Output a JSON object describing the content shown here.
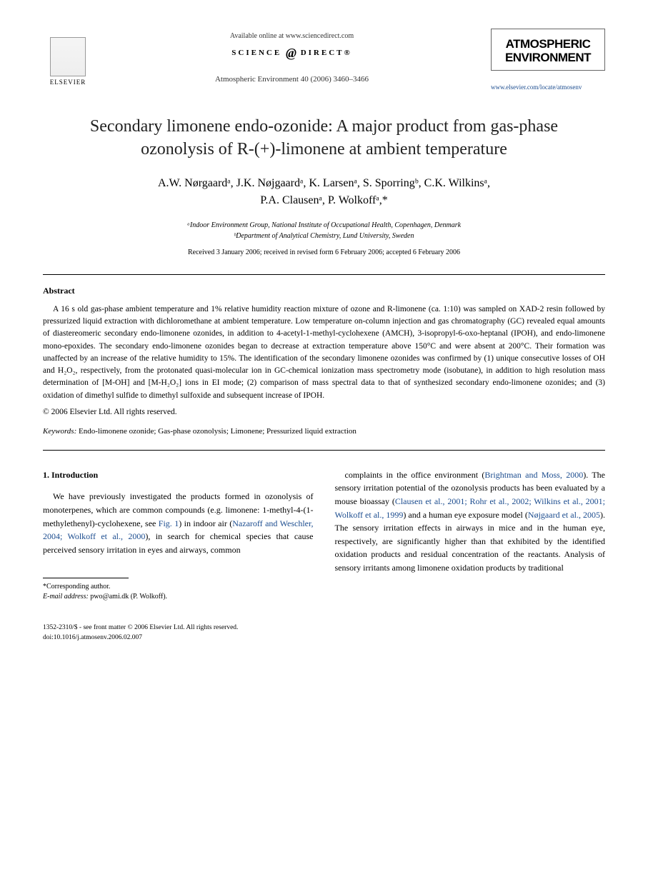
{
  "header": {
    "publisher": "ELSEVIER",
    "available_online": "Available online at www.sciencedirect.com",
    "science_direct_left": "SCIENCE",
    "science_direct_right": "DIRECT®",
    "journal_ref": "Atmospheric Environment 40 (2006) 3460–3466",
    "journal_name_line1": "ATMOSPHERIC",
    "journal_name_line2": "ENVIRONMENT",
    "journal_link": "www.elsevier.com/locate/atmosenv"
  },
  "title": "Secondary limonene endo-ozonide: A major product from gas-phase ozonolysis of R-(+)-limonene at ambient temperature",
  "authors_line1": "A.W. Nørgaardᵃ, J.K. Nøjgaardᵃ, K. Larsenᵃ, S. Sporringᵇ, C.K. Wilkinsᵃ,",
  "authors_line2": "P.A. Clausenᵃ, P. Wolkoffᵃ,*",
  "affiliations": {
    "a": "ᵃIndoor Environment Group, National Institute of Occupational Health, Copenhagen, Denmark",
    "b": "ᵇDepartment of Analytical Chemistry, Lund University, Sweden"
  },
  "dates": "Received 3 January 2006; received in revised form 6 February 2006; accepted 6 February 2006",
  "abstract": {
    "heading": "Abstract",
    "body": "A 16 s old gas-phase ambient temperature and 1% relative humidity reaction mixture of ozone and R-limonene (ca. 1:10) was sampled on XAD-2 resin followed by pressurized liquid extraction with dichloromethane at ambient temperature. Low temperature on-column injection and gas chromatography (GC) revealed equal amounts of diastereomeric secondary endo-limonene ozonides, in addition to 4-acetyl-1-methyl-cyclohexene (AMCH), 3-isopropyl-6-oxo-heptanal (IPOH), and endo-limonene mono-epoxides. The secondary endo-limonene ozonides began to decrease at extraction temperature above 150°C and were absent at 200°C. Their formation was unaffected by an increase of the relative humidity to 15%. The identification of the secondary limonene ozonides was confirmed by (1) unique consecutive losses of OH and H₂O₂, respectively, from the protonated quasi-molecular ion in GC-chemical ionization mass spectrometry mode (isobutane), in addition to high resolution mass determination of [M-OH] and [M-H₂O₂] ions in EI mode; (2) comparison of mass spectral data to that of synthesized secondary endo-limonene ozonides; and (3) oxidation of dimethyl sulfide to dimethyl sulfoxide and subsequent increase of IPOH.",
    "copyright": "© 2006 Elsevier Ltd. All rights reserved."
  },
  "keywords": {
    "label": "Keywords:",
    "text": "Endo-limonene ozonide; Gas-phase ozonolysis; Limonene; Pressurized liquid extraction"
  },
  "section1": {
    "heading": "1. Introduction",
    "col1_text_pre": "We have previously investigated the products formed in ozonolysis of monoterpenes, which are common compounds (e.g. limonene: 1-methyl-4-(1-methylethenyl)-cyclohexene, see ",
    "col1_fig": "Fig. 1",
    "col1_text_mid": ") in indoor air (",
    "col1_cite1": "Nazaroff and Weschler, 2004; Wolkoff et al., 2000",
    "col1_text_post": "), in search for chemical species that cause perceived sensory irritation in eyes and airways, common",
    "col2_text1": "complaints in the office environment (",
    "col2_cite1": "Brightman and Moss, 2000",
    "col2_text2": "). The sensory irritation potential of the ozonolysis products has been evaluated by a mouse bioassay (",
    "col2_cite2": "Clausen et al., 2001; Rohr et al., 2002; Wilkins et al., 2001; Wolkoff et al., 1999",
    "col2_text3": ") and a human eye exposure model (",
    "col2_cite3": "Nøjgaard et al., 2005",
    "col2_text4": "). The sensory irritation effects in airways in mice and in the human eye, respectively, are significantly higher than that exhibited by the identified oxidation products and residual concentration of the reactants. Analysis of sensory irritants among limonene oxidation products by traditional"
  },
  "footnote": {
    "corresponding": "*Corresponding author.",
    "email_label": "E-mail address:",
    "email": "pwo@ami.dk (P. Wolkoff)."
  },
  "footer": {
    "line1": "1352-2310/$ - see front matter © 2006 Elsevier Ltd. All rights reserved.",
    "line2": "doi:10.1016/j.atmosenv.2006.02.007"
  },
  "colors": {
    "link": "#1a4b8e",
    "text": "#000000",
    "background": "#ffffff"
  }
}
